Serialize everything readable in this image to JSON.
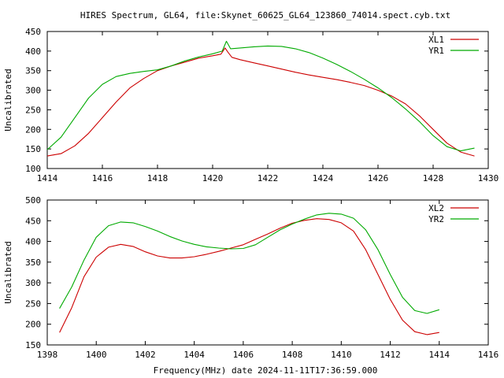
{
  "page": {
    "title": "HIRES Spectrum, GL64, file:Skynet_60625_GL64_123860_74014.spect.cyb.txt",
    "xlabel": "Frequency(MHz) date 2024-11-11T17:36:59.000"
  },
  "colors": {
    "red": "#cc0000",
    "green": "#00aa00"
  },
  "chart_data": [
    {
      "type": "line",
      "ylabel": "Uncalibrated",
      "xlim": [
        1414,
        1430
      ],
      "ylim": [
        100,
        450
      ],
      "xticks": [
        "1414",
        "1416",
        "1418",
        "1420",
        "1422",
        "1424",
        "1426",
        "1428",
        "1430"
      ],
      "yticks": [
        "100",
        "150",
        "200",
        "250",
        "300",
        "350",
        "400",
        "450"
      ],
      "legend": "top-right",
      "series": [
        {
          "name": "XL1",
          "color": "#cc0000",
          "x": [
            1414.0,
            1414.5,
            1415.0,
            1415.5,
            1416.0,
            1416.5,
            1417.0,
            1417.5,
            1418.0,
            1418.5,
            1419.0,
            1419.5,
            1420.0,
            1420.3,
            1420.45,
            1420.55,
            1420.7,
            1421.0,
            1421.5,
            1422.0,
            1422.5,
            1423.0,
            1423.5,
            1424.0,
            1424.5,
            1425.0,
            1425.5,
            1426.0,
            1426.5,
            1427.0,
            1427.5,
            1428.0,
            1428.5,
            1429.0,
            1429.5
          ],
          "y": [
            132,
            138,
            158,
            190,
            230,
            270,
            306,
            330,
            350,
            362,
            372,
            382,
            388,
            392,
            408,
            398,
            384,
            378,
            370,
            362,
            354,
            346,
            339,
            333,
            327,
            320,
            312,
            300,
            285,
            265,
            235,
            200,
            165,
            142,
            132
          ]
        },
        {
          "name": "YR1",
          "color": "#00aa00",
          "x": [
            1414.0,
            1414.5,
            1415.0,
            1415.5,
            1416.0,
            1416.5,
            1417.0,
            1417.5,
            1418.0,
            1418.5,
            1419.0,
            1419.5,
            1420.0,
            1420.35,
            1420.5,
            1420.65,
            1421.0,
            1421.5,
            1422.0,
            1422.5,
            1423.0,
            1423.5,
            1424.0,
            1424.5,
            1425.0,
            1425.5,
            1426.0,
            1426.5,
            1427.0,
            1427.5,
            1428.0,
            1428.5,
            1429.0,
            1429.5
          ],
          "y": [
            148,
            180,
            230,
            280,
            315,
            335,
            343,
            348,
            352,
            362,
            375,
            385,
            393,
            400,
            425,
            406,
            408,
            411,
            413,
            412,
            406,
            396,
            382,
            366,
            348,
            328,
            306,
            281,
            252,
            220,
            184,
            156,
            145,
            152
          ]
        }
      ]
    },
    {
      "type": "line",
      "ylabel": "Uncalibrated",
      "xlim": [
        1398,
        1416
      ],
      "ylim": [
        150,
        500
      ],
      "xticks": [
        "1398",
        "1400",
        "1402",
        "1404",
        "1406",
        "1408",
        "1410",
        "1412",
        "1414",
        "1416"
      ],
      "yticks": [
        "150",
        "200",
        "250",
        "300",
        "350",
        "400",
        "450",
        "500"
      ],
      "legend": "top-right",
      "series": [
        {
          "name": "XL2",
          "color": "#cc0000",
          "x": [
            1398.5,
            1399.0,
            1399.5,
            1400.0,
            1400.5,
            1401.0,
            1401.5,
            1402.0,
            1402.5,
            1403.0,
            1403.5,
            1404.0,
            1404.5,
            1405.0,
            1405.5,
            1406.0,
            1406.5,
            1407.0,
            1407.5,
            1408.0,
            1408.5,
            1409.0,
            1409.5,
            1410.0,
            1410.5,
            1411.0,
            1411.5,
            1412.0,
            1412.5,
            1413.0,
            1413.5,
            1414.0
          ],
          "y": [
            180,
            240,
            315,
            362,
            386,
            393,
            388,
            375,
            365,
            360,
            360,
            363,
            369,
            376,
            384,
            392,
            405,
            418,
            432,
            444,
            451,
            455,
            453,
            445,
            425,
            380,
            320,
            260,
            210,
            182,
            175,
            180
          ]
        },
        {
          "name": "YR2",
          "color": "#00aa00",
          "x": [
            1398.5,
            1399.0,
            1399.5,
            1400.0,
            1400.5,
            1401.0,
            1401.5,
            1402.0,
            1402.5,
            1403.0,
            1403.5,
            1404.0,
            1404.5,
            1405.0,
            1405.5,
            1406.0,
            1406.5,
            1407.0,
            1407.5,
            1408.0,
            1408.5,
            1409.0,
            1409.5,
            1410.0,
            1410.5,
            1411.0,
            1411.5,
            1412.0,
            1412.5,
            1413.0,
            1413.5,
            1414.0
          ],
          "y": [
            238,
            290,
            355,
            410,
            438,
            447,
            445,
            436,
            425,
            412,
            401,
            393,
            387,
            384,
            382,
            383,
            392,
            410,
            428,
            442,
            454,
            464,
            468,
            466,
            456,
            428,
            380,
            320,
            265,
            233,
            226,
            235
          ]
        }
      ]
    }
  ]
}
